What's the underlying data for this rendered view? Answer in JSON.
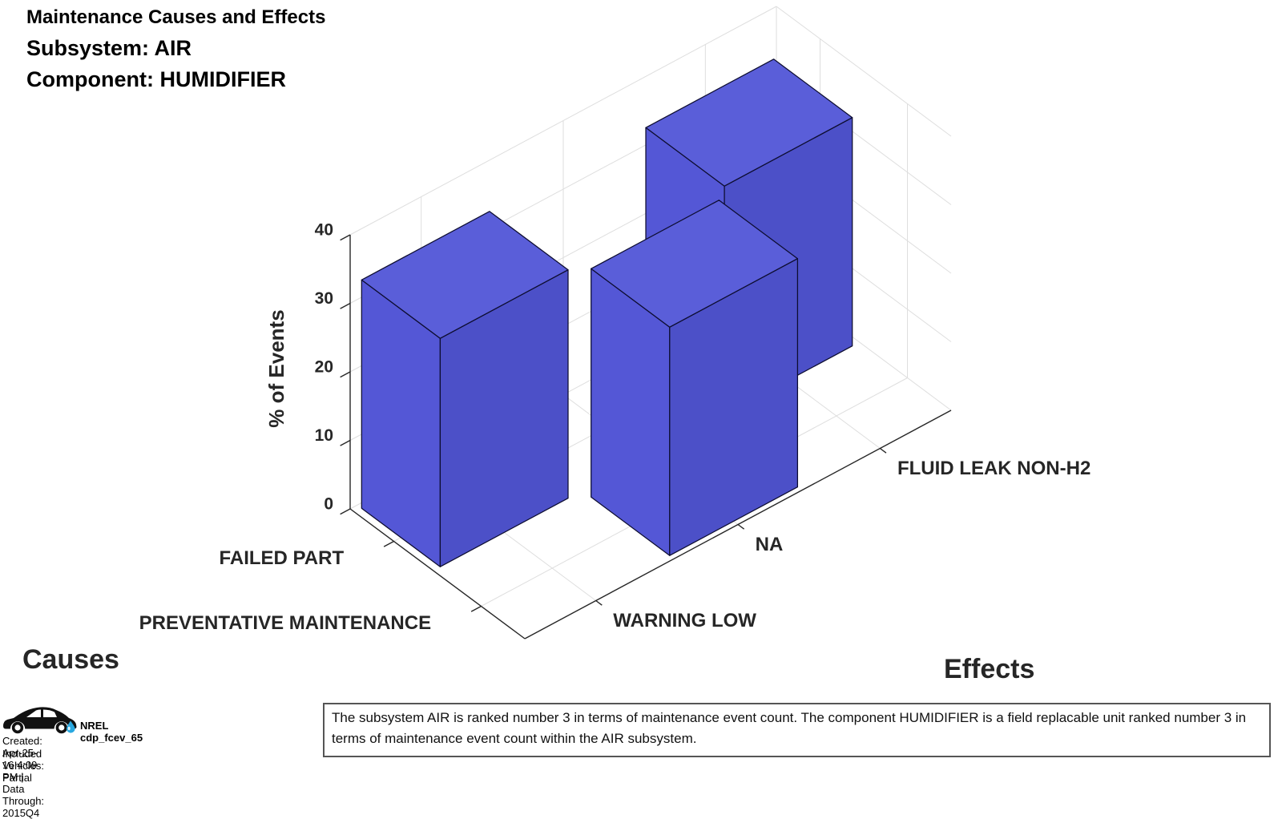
{
  "header": {
    "title": "Maintenance Causes and Effects",
    "subsystem_line": "Subsystem: AIR",
    "component_line": "Component: HUMIDIFIER"
  },
  "chart_data": {
    "type": "bar",
    "variant": "3d-grouped-bar",
    "title": "Maintenance Causes and Effects",
    "x_axis": {
      "title": "Effects",
      "categories": [
        "WARNING LOW",
        "NA",
        "FLUID LEAK NON-H2"
      ]
    },
    "y_axis": {
      "title": "Causes",
      "categories": [
        "FAILED PART",
        "PREVENTATIVE MAINTENANCE"
      ]
    },
    "z_axis": {
      "title": "% of Events",
      "ticks": [
        0,
        10,
        20,
        30,
        40
      ],
      "lim": [
        0,
        40
      ]
    },
    "series": [
      {
        "name": "FAILED PART",
        "values": [
          33.33,
          0,
          33.33
        ]
      },
      {
        "name": "PREVENTATIVE MAINTENANCE",
        "values": [
          0,
          33.33,
          0
        ]
      }
    ],
    "grid": true,
    "colors": {
      "bar_top": "#5A5ED9",
      "bar_side_x": "#5457D6",
      "bar_side_y": "#4C50C8",
      "bar_edge": "#0D0D30",
      "grid": "#DEDEDE",
      "axis": "#262626"
    }
  },
  "footer": {
    "logo_label": "NREL cdp_fcev_65",
    "created_line": "Created: Apr-25-16  4:09 PM | Data Through: 2015Q4",
    "included_line": "Included Vehicles: Partial",
    "drop_color": "#29A8E0"
  },
  "caption": {
    "text": "The subsystem AIR is ranked number 3 in terms of maintenance event count.  The component HUMIDIFIER is a field replacable unit ranked number 3 in terms of maintenance event count within the AIR subsystem."
  }
}
